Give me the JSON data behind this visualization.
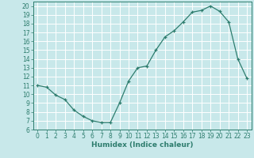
{
  "xlabel": "Humidex (Indice chaleur)",
  "x": [
    0,
    1,
    2,
    3,
    4,
    5,
    6,
    7,
    8,
    9,
    10,
    11,
    12,
    13,
    14,
    15,
    16,
    17,
    18,
    19,
    20,
    21,
    22,
    23
  ],
  "y": [
    11.0,
    10.8,
    9.9,
    9.4,
    8.2,
    7.5,
    7.0,
    6.8,
    6.8,
    9.0,
    11.5,
    13.0,
    13.2,
    15.0,
    16.5,
    17.2,
    18.2,
    19.3,
    19.5,
    20.0,
    19.4,
    18.2,
    14.0,
    11.8
  ],
  "line_color": "#2e7d6e",
  "marker": "+",
  "bg_color": "#c8e8ea",
  "grid_color": "#ffffff",
  "xlim": [
    -0.5,
    23.5
  ],
  "ylim": [
    6,
    20.5
  ],
  "yticks": [
    6,
    7,
    8,
    9,
    10,
    11,
    12,
    13,
    14,
    15,
    16,
    17,
    18,
    19,
    20
  ],
  "xticks": [
    0,
    1,
    2,
    3,
    4,
    5,
    6,
    7,
    8,
    9,
    10,
    11,
    12,
    13,
    14,
    15,
    16,
    17,
    18,
    19,
    20,
    21,
    22,
    23
  ],
  "tick_fontsize": 5.5,
  "label_fontsize": 6.5
}
